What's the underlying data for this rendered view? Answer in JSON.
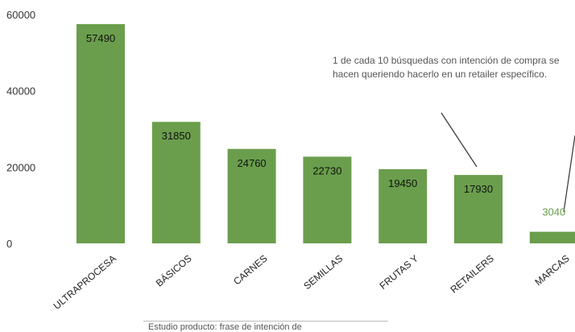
{
  "chart_data": {
    "type": "bar",
    "categories": [
      "ULTRAPROCESA",
      "BÁSICOS",
      "CARNES",
      "SEMILLAS",
      "FRUTAS Y",
      "RETAILERS",
      "MARCAS"
    ],
    "values": [
      57490,
      31850,
      24760,
      22730,
      19450,
      17930,
      3040
    ],
    "ylim": [
      0,
      60000
    ],
    "yticks": [
      0,
      20000,
      40000,
      60000
    ],
    "bar_color": "#6a9e4c",
    "outside_label_color": "#6a9e4c",
    "grid": false,
    "annotation": "1 de cada 10 búsquedas con intención de compra se hacen queriendo hacerlo en un retailer específico.",
    "footnote": "Estudio producto: frase de intención de"
  }
}
